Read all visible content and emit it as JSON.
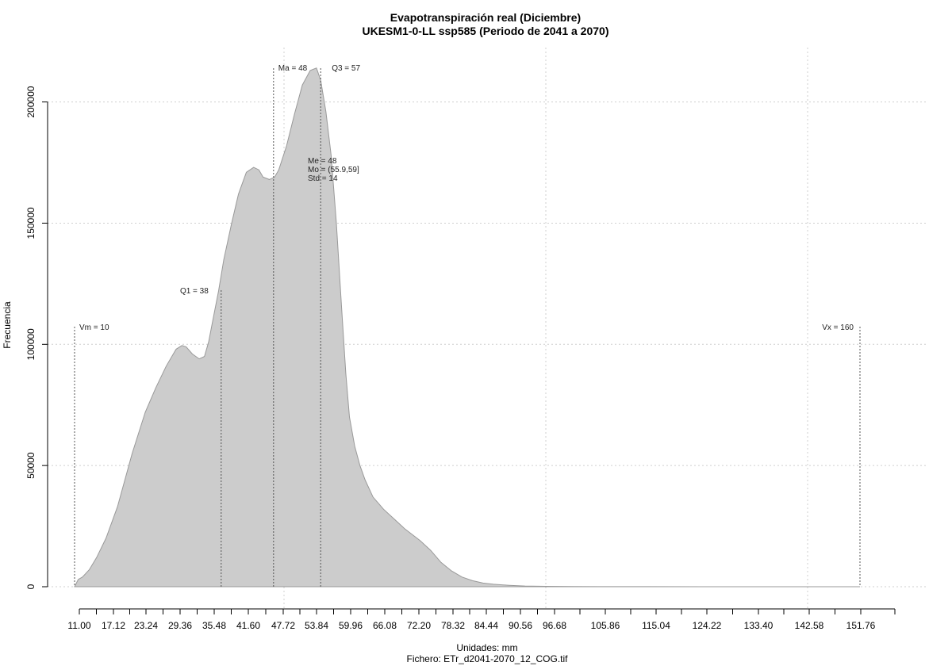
{
  "chart_data": {
    "type": "area",
    "title": "Evapotranspiración real (Diciembre)",
    "subtitle": "UKESM1-0-LL ssp585 (Periodo de 2041 a 2070)",
    "xlabel": "Unidades: mm",
    "ylabel": "Frecuencia",
    "file_label": "Fichero: ETr_d2041-2070_12_COG.tif",
    "xlim": [
      10,
      170
    ],
    "ylim": [
      0,
      210000
    ],
    "fill_color": "#cccccc",
    "line_color": "#999999",
    "grid": true,
    "x_ticks": [
      "11.00",
      "17.12",
      "23.24",
      "29.36",
      "35.48",
      "41.60",
      "47.72",
      "53.84",
      "59.96",
      "66.08",
      "72.20",
      "78.32",
      "84.44",
      "90.56",
      "96.68",
      "105.86",
      "115.04",
      "124.22",
      "133.40",
      "142.58",
      "151.76"
    ],
    "y_ticks": [
      "0",
      "50000",
      "100000",
      "150000",
      "200000"
    ],
    "series": [
      {
        "x": [
          10,
          10.7,
          11.5,
          12.8,
          14.2,
          16,
          18.2,
          21,
          23.5,
          25.5,
          27.5,
          29.4,
          30.5,
          31.3,
          32.5,
          33.8,
          34.8,
          35.6,
          36.5,
          37.5,
          38.5,
          40,
          41.3,
          42.8,
          44.2,
          45.2,
          46,
          47.2,
          48.2,
          49,
          50.5,
          52,
          53.5,
          55,
          56.2,
          57,
          58,
          59,
          60,
          61,
          61.8,
          62.5,
          63.5,
          64.5,
          65.5,
          67,
          69,
          71,
          73,
          76,
          78,
          80,
          82,
          84,
          86,
          88,
          90,
          93,
          96,
          100,
          105,
          110,
          120,
          130,
          140,
          150,
          160
        ],
        "y": [
          0,
          3000,
          4000,
          7000,
          12000,
          20000,
          33000,
          55000,
          72000,
          82000,
          91000,
          98000,
          99500,
          99000,
          96000,
          94000,
          95000,
          101000,
          111000,
          122000,
          135000,
          150000,
          162000,
          171000,
          173000,
          172000,
          169000,
          168000,
          169000,
          172000,
          182000,
          195000,
          207000,
          213000,
          214000,
          209000,
          196000,
          178000,
          150000,
          115000,
          88000,
          70000,
          58000,
          50000,
          44000,
          37000,
          32000,
          28000,
          24000,
          19000,
          15000,
          10000,
          6500,
          4000,
          2500,
          1500,
          1000,
          600,
          300,
          150,
          80,
          40,
          20,
          10,
          5,
          2,
          0
        ]
      }
    ],
    "markers": [
      {
        "name": "Vm",
        "x": 10,
        "label": "Vm = 10"
      },
      {
        "name": "Q1",
        "x": 38,
        "label": "Q1 = 38"
      },
      {
        "name": "Ma",
        "x": 48,
        "label": "Ma = 48"
      },
      {
        "name": "Q3",
        "x": 57,
        "label": "Q3 = 57"
      },
      {
        "name": "Vx",
        "x": 160,
        "label": "Vx = 160"
      }
    ],
    "stats_labels": [
      "Me = 48",
      "Mo = (55.9,59]",
      "Std = 14"
    ]
  }
}
